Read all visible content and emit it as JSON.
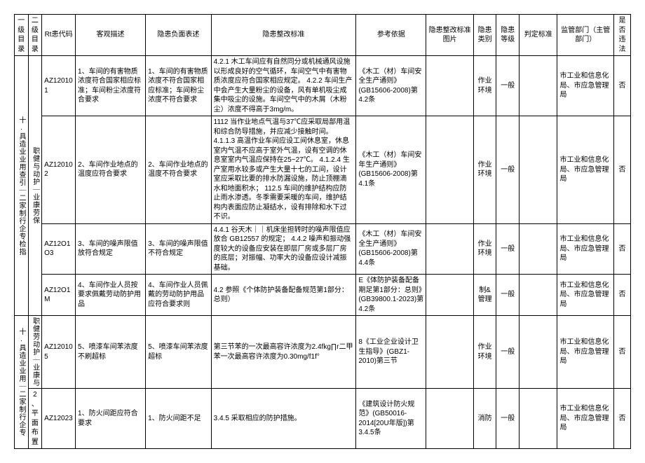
{
  "headers": {
    "lv1": "一级目录",
    "lv2": "二级目录",
    "code": "Rt患代码",
    "obj": "客观描述",
    "neg": "隐患负面表述",
    "std": "隐患整改标准",
    "ref": "参考依据",
    "img": "隐患整改标准图片",
    "cat": "隐患类别",
    "lvl": "隐患等级",
    "judge": "判定标准",
    "dept": "监管部门（主管部门）",
    "ill": "是否违法"
  },
  "lv1_a": "十.具造业业用查引｜二家制行企专检指",
  "lv2_a": "职健与动护｜业康劳保",
  "lv1_b": "十.具造业业用｜二家制行企专",
  "lv2_b": "职健劳动护｜业康与",
  "lv2_c": "2、平面布置",
  "rows": [
    {
      "code": "AZ120101",
      "obj": "1、车间的有害物质浓度符合国家相应标准；车间粉尘浓度符合要求",
      "neg": "1、车间的有害物质浓度不符合国家相应标准；车间粉尘浓度不符合要求",
      "std": "4.2.1 木工车间应有自然同分或机械通风设施以形成良好的空气循环，车间空气中有害物质浓度应符合国家相应规定。\n4.2.2 车间生产中会产生大量粉尘的设备，风有单机吸尘成集中吸尘的设施。车间空气中的木屑（木粉尘）浓度不得高于3mg/m。",
      "ref": "《木工（材）车间安全生产通则》(GB15606-2008)第4.2条",
      "cat": "作业环境",
      "lvl": "一般",
      "dept": "市工业和信息化局、市应急管理局",
      "ill": "否"
    },
    {
      "code": "AZ120102",
      "obj": "2、车间作业地点的温度应符合要求",
      "neg": "2、车间作业地点的温度不符合要求",
      "std": "1112 当作业地点气温与37℃应采取局部用温和综合防导措施，并应减少接触时间。\n4.1.1.3 高温作业车间应设工间休息室，休息室内气温不应高于室外气温，设有空调的休息室室内气温应保持在25~27℃。\n4.1.2.4 生产室用水较多或产生大量十七的工间，设计室应采取比要的排水防漏设施，防止顶棚滴水和地面积水；\n112.5 车间的维护结构应防止雨水渗透。冬季需要采暖的车间，维护结构内表面应防止凝结水，设有排除和水下过不识。",
      "ref": "《木工（材）车间安年生产通则》(GB15606-2008)第4.1条",
      "cat": "作业环境",
      "lvl": "一般",
      "dept": "市工业和信息化局、市应急管理局",
      "ill": "否"
    },
    {
      "code": "AZ12O1O3",
      "obj": "3、车间的噪声限值放符合规定",
      "neg": "3、车间的噪声限值不符合规定",
      "std": "4.4.1 谷天木｜｜机床坐担转时的噪声限值应放合 GB12557 的规定；\n4.4.2 噪声和振动强度较大的设备应安装在即层厂房或多层厂房的底层；对振幅、功率大的设备应设计减振基础。",
      "ref": "《木工（材）车间安全生产通则》(GB15606-2008)第4.4条",
      "cat": "作业环境",
      "lvl": "一般",
      "dept": "市工业和信息化局、市应急管理局",
      "ill": "否"
    },
    {
      "code": "AZ12O1M",
      "obj": "4、车间作业人员按要求佩戴劳动防护用品",
      "neg": "4、车间作业人员佩戴的劳动防护用品应符合要求则",
      "std": "4.2 参照《个体防护装备配备规范第1部分：总则）",
      "ref": "E《体防护装备配备期足第1部分：总则》(GB39800.1-2023)第4.2条",
      "cat": "制&管理",
      "lvl": "一般",
      "dept": "市工业和信息化局、市应急管理局",
      "ill": "否"
    },
    {
      "code": "AZ120105",
      "obj": "5、喷漆车间苯浓度不刷超标",
      "neg": "5、喷漆车间苯浓度超标",
      "std": "第三节苯的一次最高容许浓度为2.4fkg∏r二甲苯一次最高容许浓度为0.30mg/f1f°",
      "ref": "8《工业企业设计卫生指导》(GBZ1-2010)第三节",
      "cat": "作业环境",
      "lvl": "一般",
      "dept": "市工业和信息化局、市应急管理局",
      "ill": "否"
    },
    {
      "code": "AZ12023",
      "obj": "1、防火间距应符合要求",
      "neg": "1、防火间距不足",
      "std": "3.4.5 采取相应的防护措施。",
      "ref": "《建筑设计防火规范》(GB50016-2014[20U年版])第3.4.5条",
      "cat": "消防",
      "lvl": "一般",
      "dept": "市工业和信息化局、市应急管理局",
      "ill": "否"
    }
  ]
}
